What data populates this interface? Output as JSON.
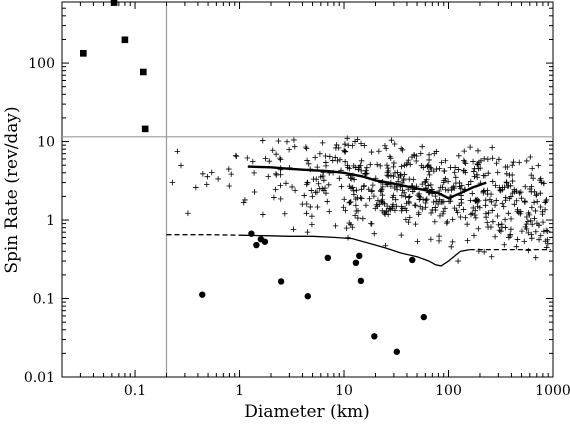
{
  "chart_data": {
    "type": "scatter",
    "title": "",
    "xlabel": "Diameter (km)",
    "ylabel": "Spin Rate (rev/day)",
    "x_scale": "log",
    "y_scale": "log",
    "xlim": [
      0.02,
      1000
    ],
    "ylim": [
      0.01,
      600
    ],
    "x_tick_values": [
      0.1,
      1,
      10,
      100,
      1000
    ],
    "x_tick_labels": [
      "0.1",
      "1",
      "10",
      "100",
      "1000"
    ],
    "y_tick_values": [
      0.01,
      0.1,
      1,
      10,
      100
    ],
    "y_tick_labels": [
      "0.01",
      "0.1",
      "1",
      "10",
      "100"
    ],
    "grid": false,
    "reference_lines": {
      "vertical_x": 0.2,
      "horizontal_y": 11.5,
      "color": "#9a9a9a"
    },
    "series": [
      {
        "marker": "square",
        "points": [
          [
            0.032,
            133
          ],
          [
            0.063,
            590
          ],
          [
            0.08,
            198
          ],
          [
            0.12,
            77
          ],
          [
            0.125,
            14.5
          ]
        ]
      },
      {
        "marker": "circle",
        "points": [
          [
            0.44,
            0.112
          ],
          [
            1.3,
            0.67
          ],
          [
            1.45,
            0.48
          ],
          [
            1.6,
            0.57
          ],
          [
            1.75,
            0.53
          ],
          [
            2.5,
            0.165
          ],
          [
            4.5,
            0.107
          ],
          [
            7,
            0.33
          ],
          [
            13,
            0.285
          ],
          [
            14,
            0.35
          ],
          [
            14.5,
            0.168
          ],
          [
            19.5,
            0.033
          ],
          [
            32,
            0.021
          ],
          [
            45,
            0.31
          ],
          [
            58,
            0.058
          ]
        ]
      },
      {
        "marker": "plus",
        "generated": true,
        "seed": 7,
        "count": 620,
        "x_range": [
          0.22,
          900
        ],
        "y_range": [
          0.3,
          11
        ]
      },
      {
        "type": "line",
        "style": "solid",
        "points": [
          [
            1.2,
            4.8
          ],
          [
            2,
            4.7
          ],
          [
            3,
            4.5
          ],
          [
            5,
            4.3
          ],
          [
            7,
            4.2
          ],
          [
            10,
            4.0
          ],
          [
            15,
            3.6
          ],
          [
            20,
            3.2
          ],
          [
            30,
            2.9
          ],
          [
            45,
            2.6
          ],
          [
            60,
            2.4
          ],
          [
            80,
            2.2
          ],
          [
            100,
            1.9
          ],
          [
            130,
            2.2
          ],
          [
            170,
            2.6
          ],
          [
            230,
            3.0
          ]
        ]
      },
      {
        "type": "line",
        "style": "dashed-solid-dashed",
        "points": [
          [
            0.2,
            0.65
          ],
          [
            0.5,
            0.65
          ],
          [
            1,
            0.64
          ],
          [
            2,
            0.63
          ],
          [
            3,
            0.62
          ],
          [
            5,
            0.62
          ],
          [
            8,
            0.6
          ],
          [
            12,
            0.58
          ],
          [
            18,
            0.5
          ],
          [
            25,
            0.44
          ],
          [
            35,
            0.38
          ],
          [
            50,
            0.34
          ],
          [
            65,
            0.3
          ],
          [
            75,
            0.27
          ],
          [
            85,
            0.26
          ],
          [
            100,
            0.3
          ],
          [
            130,
            0.4
          ],
          [
            160,
            0.42
          ],
          [
            250,
            0.42
          ],
          [
            500,
            0.42
          ],
          [
            950,
            0.42
          ]
        ]
      }
    ]
  }
}
